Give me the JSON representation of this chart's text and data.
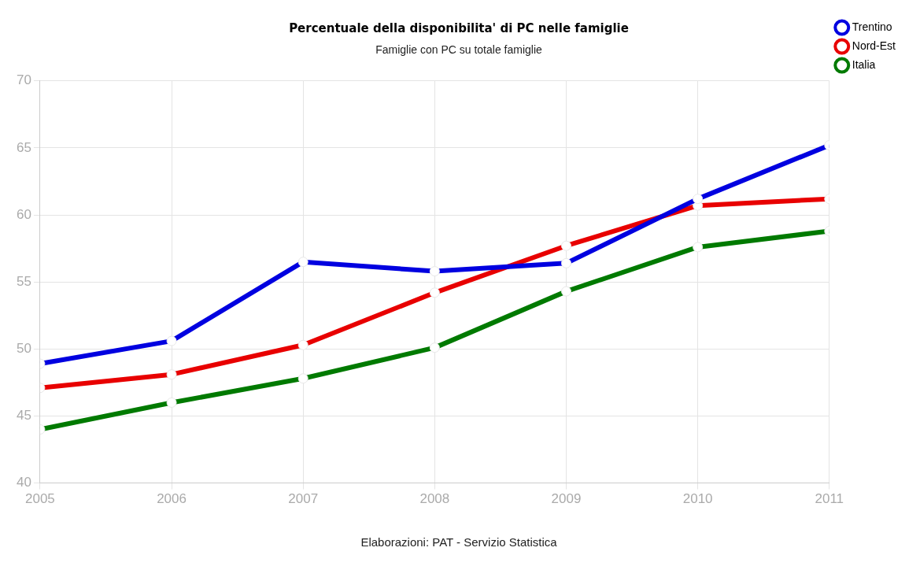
{
  "chart_data": {
    "type": "line",
    "title": "Percentuale della disponibilita' di PC nelle famiglie",
    "subtitle": "Famiglie con PC su totale famiglie",
    "x": [
      2005,
      2006,
      2007,
      2008,
      2009,
      2010,
      2011
    ],
    "series": [
      {
        "name": "Trentino",
        "color": "#0000e0",
        "values": [
          48.9,
          50.6,
          56.5,
          55.8,
          56.4,
          61.2,
          65.2
        ]
      },
      {
        "name": "Nord-Est",
        "color": "#e80000",
        "values": [
          47.1,
          48.1,
          50.3,
          54.2,
          57.7,
          60.7,
          61.2
        ]
      },
      {
        "name": "Italia",
        "color": "#007a00",
        "values": [
          44.0,
          46.0,
          47.8,
          50.1,
          54.3,
          57.6,
          58.8
        ]
      }
    ],
    "xlim": [
      2005,
      2011
    ],
    "xticks": [
      2005,
      2006,
      2007,
      2008,
      2009,
      2010,
      2011
    ],
    "ylim": [
      40,
      70
    ],
    "yticks": [
      40,
      45,
      50,
      55,
      60,
      65,
      70
    ],
    "grid": true,
    "legend": "top right",
    "marker": "circle",
    "line_style": "solid",
    "annotations": [
      "Elaborazioni: PAT - Servizio Statistica"
    ]
  }
}
